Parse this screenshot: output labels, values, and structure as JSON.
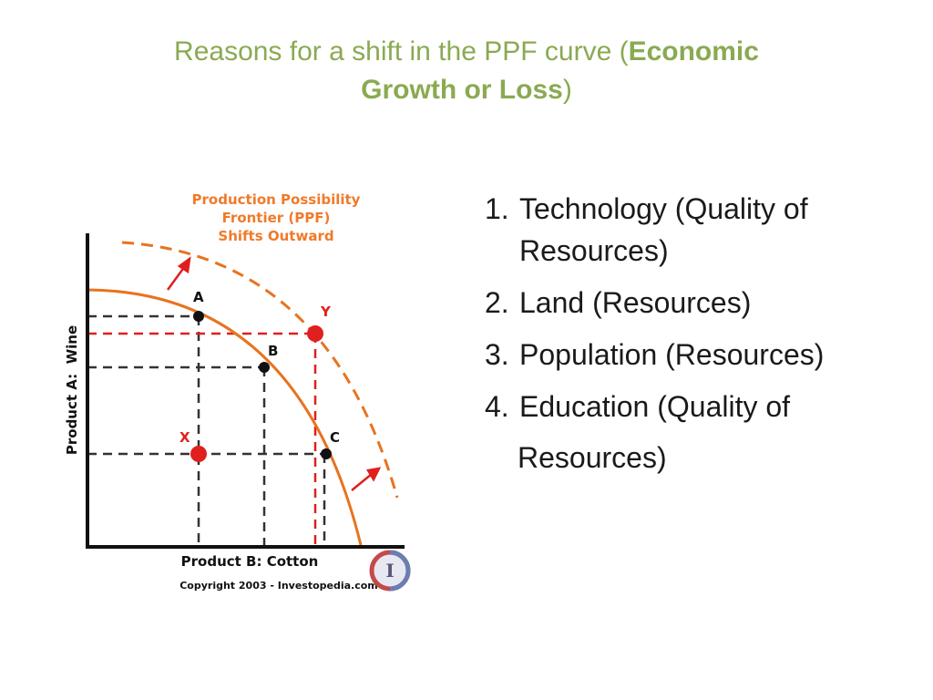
{
  "title": {
    "prefix": "Reasons for a shift in the PPF curve (",
    "bold": "Economic Growth or Loss",
    "suffix": ")"
  },
  "diagram": {
    "heading_lines": [
      "Production Possibility",
      "Frontier (PPF)",
      "Shifts Outward"
    ],
    "y_axis_label": "Product A:  Wine",
    "x_axis_label": "Product B: Cotton",
    "copyright": "Copyright 2003 - Investopedia.com",
    "logo_letter": "I",
    "points": {
      "A": "A",
      "B": "B",
      "C": "C",
      "X": "X",
      "Y": "Y"
    },
    "colors": {
      "curve": "#e8731f",
      "heading": "#f07a2a",
      "red": "#e01f1f",
      "axis": "#111111",
      "guide": "#333333"
    }
  },
  "reasons": [
    {
      "num": "1.",
      "text": "Technology (Quality of",
      "cont": "Resources)"
    },
    {
      "num": "2.",
      "text": "Land (Resources)"
    },
    {
      "num": "3.",
      "text": "Population (Resources)"
    },
    {
      "num": "4.",
      "text": "Education (Quality of",
      "cont": "Resources)"
    }
  ]
}
